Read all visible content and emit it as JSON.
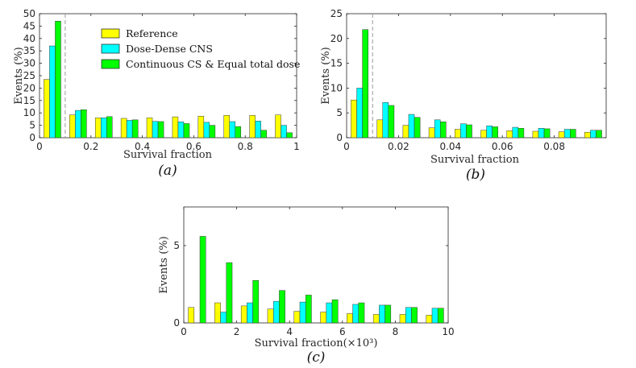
{
  "figure": {
    "legend": [
      {
        "label": "Reference",
        "color": "#ffff00"
      },
      {
        "label": "Dose-Dense CNS",
        "color": "#00ffff"
      },
      {
        "label": "Continuous CS & Equal total dose",
        "color": "#00ff00"
      }
    ]
  },
  "chart_data": [
    {
      "type": "bar",
      "caption": "(a)",
      "xlabel": "Survival fraction",
      "ylabel": "Events (%)",
      "xlim": [
        0,
        1
      ],
      "ylim": [
        0,
        50
      ],
      "xticks": [
        "0",
        "0.2",
        "0.4",
        "0.6",
        "0.8",
        "1"
      ],
      "xtick_values": [
        0,
        0.2,
        0.4,
        0.6,
        0.8,
        1
      ],
      "yticks": [
        "0",
        "5",
        "10",
        "15",
        "20",
        "25",
        "30",
        "35",
        "40",
        "45",
        "50"
      ],
      "ytick_values": [
        0,
        5,
        10,
        15,
        20,
        25,
        30,
        35,
        40,
        45,
        50
      ],
      "threshold": 0.1,
      "bin_width": 0.1,
      "x": [
        0.05,
        0.15,
        0.25,
        0.35,
        0.45,
        0.55,
        0.65,
        0.75,
        0.85,
        0.95
      ],
      "series": [
        {
          "name": "Reference",
          "color": "#ffff00",
          "values": [
            23.5,
            9.2,
            8.0,
            7.8,
            8.0,
            8.4,
            8.7,
            9.0,
            9.0,
            9.2
          ]
        },
        {
          "name": "Dose-Dense CNS",
          "color": "#00ffff",
          "values": [
            37.0,
            11.0,
            8.0,
            7.0,
            6.6,
            6.4,
            6.2,
            6.5,
            6.7,
            5.0
          ]
        },
        {
          "name": "Continuous CS & Equal total dose",
          "color": "#00ff00",
          "values": [
            47.0,
            11.3,
            8.5,
            7.2,
            6.5,
            5.7,
            5.0,
            4.5,
            3.0,
            2.0
          ]
        }
      ],
      "legend_position": "top-center"
    },
    {
      "type": "bar",
      "caption": "(b)",
      "xlabel": "Survival fraction",
      "ylabel": "Events (%)",
      "xlim": [
        0,
        0.1
      ],
      "ylim": [
        0,
        25
      ],
      "xticks": [
        "0",
        "0.02",
        "0.04",
        "0.06",
        "0.08"
      ],
      "xtick_values": [
        0,
        0.02,
        0.04,
        0.06,
        0.08
      ],
      "yticks": [
        "0",
        "5",
        "10",
        "15",
        "20",
        "25"
      ],
      "ytick_values": [
        0,
        5,
        10,
        15,
        20,
        25
      ],
      "threshold": 0.01,
      "bin_width": 0.01,
      "x": [
        0.005,
        0.015,
        0.025,
        0.035,
        0.045,
        0.055,
        0.065,
        0.075,
        0.085,
        0.095
      ],
      "series": [
        {
          "name": "Reference",
          "color": "#ffff00",
          "values": [
            7.6,
            3.6,
            2.5,
            2.0,
            1.7,
            1.5,
            1.4,
            1.3,
            1.2,
            1.1
          ]
        },
        {
          "name": "Dose-Dense CNS",
          "color": "#00ffff",
          "values": [
            10.0,
            7.1,
            4.7,
            3.6,
            2.8,
            2.4,
            2.1,
            1.9,
            1.7,
            1.5
          ]
        },
        {
          "name": "Continuous CS & Equal total dose",
          "color": "#00ff00",
          "values": [
            21.8,
            6.5,
            4.1,
            3.2,
            2.6,
            2.2,
            1.9,
            1.8,
            1.7,
            1.5
          ]
        }
      ]
    },
    {
      "type": "bar",
      "caption": "(c)",
      "xlabel": "Survival fraction(×10³)",
      "ylabel": "Events (%)",
      "xlim": [
        0,
        10
      ],
      "ylim": [
        0,
        7.5
      ],
      "xticks": [
        "0",
        "2",
        "4",
        "6",
        "8",
        "10"
      ],
      "xtick_values": [
        0,
        2,
        4,
        6,
        8,
        10
      ],
      "yticks": [
        "0",
        "5"
      ],
      "ytick_values": [
        0,
        5
      ],
      "bin_width": 1,
      "x": [
        0.5,
        1.5,
        2.5,
        3.5,
        4.5,
        5.5,
        6.5,
        7.5,
        8.5,
        9.5
      ],
      "series": [
        {
          "name": "Reference",
          "color": "#ffff00",
          "values": [
            1.0,
            1.3,
            1.1,
            0.9,
            0.75,
            0.7,
            0.6,
            0.55,
            0.55,
            0.5
          ]
        },
        {
          "name": "Dose-Dense CNS",
          "color": "#00ffff",
          "values": [
            0.0,
            0.7,
            1.3,
            1.4,
            1.35,
            1.3,
            1.2,
            1.15,
            1.0,
            0.95
          ]
        },
        {
          "name": "Continuous CS & Equal total dose",
          "color": "#00ff00",
          "values": [
            5.6,
            3.9,
            2.75,
            2.1,
            1.8,
            1.5,
            1.3,
            1.15,
            1.0,
            0.95
          ]
        }
      ]
    }
  ]
}
